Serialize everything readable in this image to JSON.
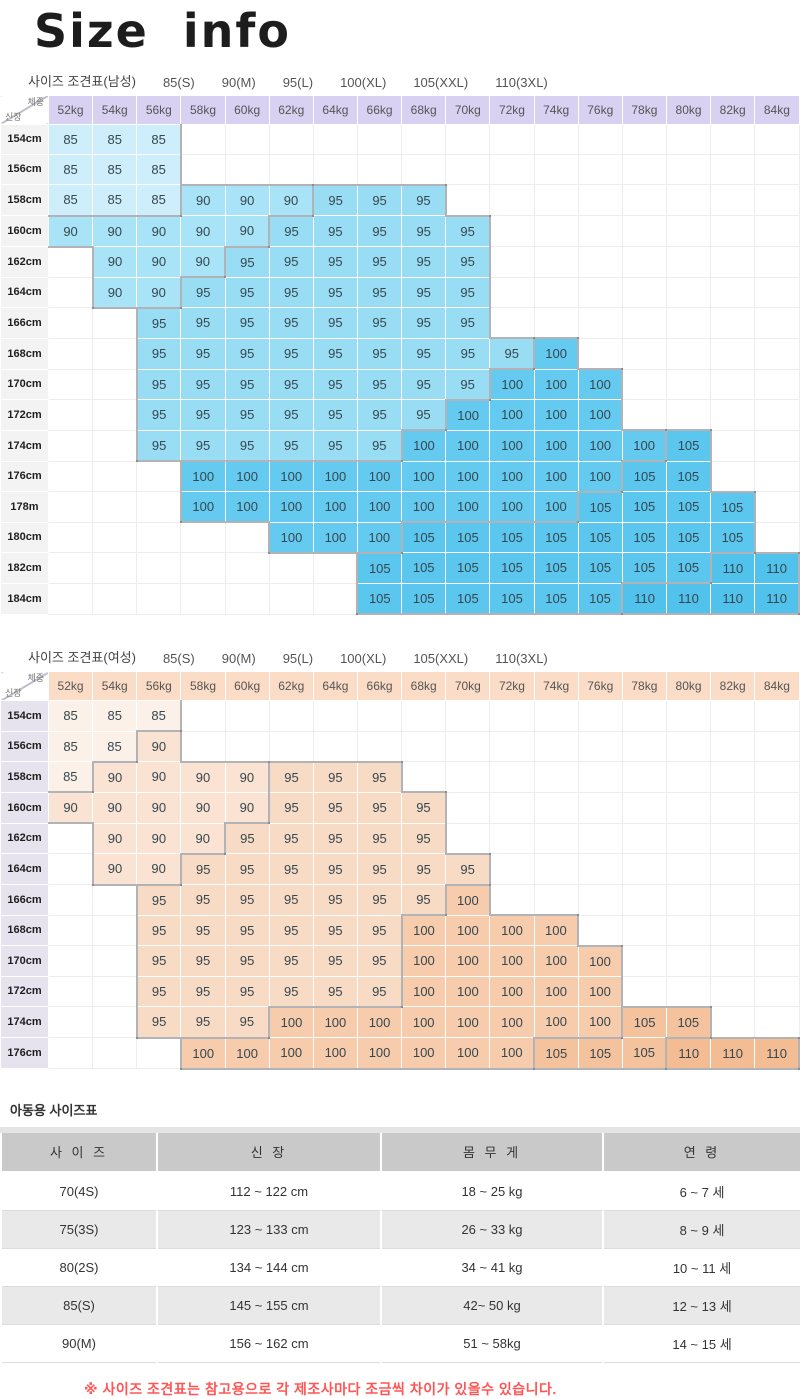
{
  "page_title": "Size info",
  "corner": {
    "top": "체중",
    "bottom": "신장"
  },
  "weights": [
    "52kg",
    "54kg",
    "56kg",
    "58kg",
    "60kg",
    "62kg",
    "64kg",
    "66kg",
    "68kg",
    "70kg",
    "72kg",
    "74kg",
    "76kg",
    "78kg",
    "80kg",
    "82kg",
    "84kg"
  ],
  "mens": {
    "name": "mens-size-table",
    "title_parts": [
      "사이즈 조견표(남성)",
      "85(S)",
      "90(M)",
      "95(L)",
      "100(XL)",
      "105(XXL)",
      "110(3XL)"
    ],
    "colors": {
      "header_bg": "#D8D1F1",
      "label_bg": "#F4F3F3",
      "cells": {
        "85": "#CDEEFA",
        "90": "#A8E3F7",
        "95": "#99DDF4",
        "100": "#65CAEF",
        "105": "#5BC6EE",
        "110": "#51C2EC"
      }
    },
    "rows": [
      {
        "label": "154cm",
        "cells": [
          "85",
          "85",
          "85",
          "",
          "",
          "",
          "",
          "",
          "",
          "",
          "",
          "",
          "",
          "",
          "",
          "",
          ""
        ]
      },
      {
        "label": "156cm",
        "cells": [
          "85",
          "85",
          "85",
          "",
          "",
          "",
          "",
          "",
          "",
          "",
          "",
          "",
          "",
          "",
          "",
          "",
          ""
        ]
      },
      {
        "label": "158cm",
        "cells": [
          "85",
          "85",
          "85",
          "90",
          "90",
          "90",
          "95",
          "95",
          "95",
          "",
          "",
          "",
          "",
          "",
          "",
          "",
          ""
        ]
      },
      {
        "label": "160cm",
        "cells": [
          "90",
          "90",
          "90",
          "90",
          "90",
          "95",
          "95",
          "95",
          "95",
          "95",
          "",
          "",
          "",
          "",
          "",
          "",
          ""
        ]
      },
      {
        "label": "162cm",
        "cells": [
          "",
          "90",
          "90",
          "90",
          "95",
          "95",
          "95",
          "95",
          "95",
          "95",
          "",
          "",
          "",
          "",
          "",
          "",
          ""
        ]
      },
      {
        "label": "164cm",
        "cells": [
          "",
          "90",
          "90",
          "95",
          "95",
          "95",
          "95",
          "95",
          "95",
          "95",
          "",
          "",
          "",
          "",
          "",
          "",
          ""
        ]
      },
      {
        "label": "166cm",
        "cells": [
          "",
          "",
          "95",
          "95",
          "95",
          "95",
          "95",
          "95",
          "95",
          "95",
          "",
          "",
          "",
          "",
          "",
          "",
          ""
        ]
      },
      {
        "label": "168cm",
        "cells": [
          "",
          "",
          "95",
          "95",
          "95",
          "95",
          "95",
          "95",
          "95",
          "95",
          "95",
          "100",
          "",
          "",
          "",
          "",
          ""
        ]
      },
      {
        "label": "170cm",
        "cells": [
          "",
          "",
          "95",
          "95",
          "95",
          "95",
          "95",
          "95",
          "95",
          "95",
          "100",
          "100",
          "100",
          "",
          "",
          "",
          ""
        ]
      },
      {
        "label": "172cm",
        "cells": [
          "",
          "",
          "95",
          "95",
          "95",
          "95",
          "95",
          "95",
          "95",
          "100",
          "100",
          "100",
          "100",
          "",
          "",
          "",
          ""
        ]
      },
      {
        "label": "174cm",
        "cells": [
          "",
          "",
          "95",
          "95",
          "95",
          "95",
          "95",
          "95",
          "100",
          "100",
          "100",
          "100",
          "100",
          "100",
          "105",
          "",
          ""
        ]
      },
      {
        "label": "176cm",
        "cells": [
          "",
          "",
          "",
          "100",
          "100",
          "100",
          "100",
          "100",
          "100",
          "100",
          "100",
          "100",
          "100",
          "105",
          "105",
          "",
          ""
        ]
      },
      {
        "label": "178m",
        "cells": [
          "",
          "",
          "",
          "100",
          "100",
          "100",
          "100",
          "100",
          "100",
          "100",
          "100",
          "100",
          "105",
          "105",
          "105",
          "105",
          ""
        ]
      },
      {
        "label": "180cm",
        "cells": [
          "",
          "",
          "",
          "",
          "",
          "100",
          "100",
          "100",
          "105",
          "105",
          "105",
          "105",
          "105",
          "105",
          "105",
          "105",
          ""
        ]
      },
      {
        "label": "182cm",
        "cells": [
          "",
          "",
          "",
          "",
          "",
          "",
          "",
          "105",
          "105",
          "105",
          "105",
          "105",
          "105",
          "105",
          "105",
          "110",
          "110"
        ]
      },
      {
        "label": "184cm",
        "cells": [
          "",
          "",
          "",
          "",
          "",
          "",
          "",
          "105",
          "105",
          "105",
          "105",
          "105",
          "105",
          "110",
          "110",
          "110",
          "110"
        ]
      }
    ]
  },
  "womens": {
    "name": "womens-size-table",
    "title_parts": [
      "사이즈 조견표(여성)",
      "85(S)",
      "90(M)",
      "95(L)",
      "100(XL)",
      "105(XXL)",
      "110(3XL)"
    ],
    "colors": {
      "header_bg": "#FBDCC6",
      "label_bg": "#E7E3EE",
      "cells": {
        "85": "#FCF1E8",
        "90": "#FAE3D2",
        "95": "#F8DBC5",
        "100": "#F6CCAC",
        "105": "#F4C29C",
        "110": "#F3BC93"
      }
    },
    "rows": [
      {
        "label": "154cm",
        "cells": [
          "85",
          "85",
          "85",
          "",
          "",
          "",
          "",
          "",
          "",
          "",
          "",
          "",
          "",
          "",
          "",
          "",
          ""
        ]
      },
      {
        "label": "156cm",
        "cells": [
          "85",
          "85",
          "90",
          "",
          "",
          "",
          "",
          "",
          "",
          "",
          "",
          "",
          "",
          "",
          "",
          "",
          ""
        ]
      },
      {
        "label": "158cm",
        "cells": [
          "85",
          "90",
          "90",
          "90",
          "90",
          "95",
          "95",
          "95",
          "",
          "",
          "",
          "",
          "",
          "",
          "",
          "",
          ""
        ]
      },
      {
        "label": "160cm",
        "cells": [
          "90",
          "90",
          "90",
          "90",
          "90",
          "95",
          "95",
          "95",
          "95",
          "",
          "",
          "",
          "",
          "",
          "",
          "",
          ""
        ]
      },
      {
        "label": "162cm",
        "cells": [
          "",
          "90",
          "90",
          "90",
          "95",
          "95",
          "95",
          "95",
          "95",
          "",
          "",
          "",
          "",
          "",
          "",
          "",
          ""
        ]
      },
      {
        "label": "164cm",
        "cells": [
          "",
          "90",
          "90",
          "95",
          "95",
          "95",
          "95",
          "95",
          "95",
          "95",
          "",
          "",
          "",
          "",
          "",
          "",
          ""
        ]
      },
      {
        "label": "166cm",
        "cells": [
          "",
          "",
          "95",
          "95",
          "95",
          "95",
          "95",
          "95",
          "95",
          "100",
          "",
          "",
          "",
          "",
          "",
          "",
          ""
        ]
      },
      {
        "label": "168cm",
        "cells": [
          "",
          "",
          "95",
          "95",
          "95",
          "95",
          "95",
          "95",
          "100",
          "100",
          "100",
          "100",
          "",
          "",
          "",
          "",
          ""
        ]
      },
      {
        "label": "170cm",
        "cells": [
          "",
          "",
          "95",
          "95",
          "95",
          "95",
          "95",
          "95",
          "100",
          "100",
          "100",
          "100",
          "100",
          "",
          "",
          "",
          ""
        ]
      },
      {
        "label": "172cm",
        "cells": [
          "",
          "",
          "95",
          "95",
          "95",
          "95",
          "95",
          "95",
          "100",
          "100",
          "100",
          "100",
          "100",
          "",
          "",
          "",
          ""
        ]
      },
      {
        "label": "174cm",
        "cells": [
          "",
          "",
          "95",
          "95",
          "95",
          "100",
          "100",
          "100",
          "100",
          "100",
          "100",
          "100",
          "100",
          "105",
          "105",
          "",
          ""
        ]
      },
      {
        "label": "176cm",
        "cells": [
          "",
          "",
          "",
          "100",
          "100",
          "100",
          "100",
          "100",
          "100",
          "100",
          "100",
          "105",
          "105",
          "105",
          "110",
          "110",
          "110"
        ]
      }
    ]
  },
  "kids": {
    "title": "아동용 사이즈표",
    "headers": [
      "사 이 즈",
      "신    장",
      "몸 무 게",
      "연    령"
    ],
    "colors": {
      "header_bg": "#C9C9C9",
      "row_bg": "#FFFFFF",
      "row_alt_bg": "#E9E9E9"
    },
    "rows": [
      [
        "70(4S)",
        "112 ~ 122 cm",
        "18 ~ 25 kg",
        "6 ~ 7 세"
      ],
      [
        "75(3S)",
        "123 ~ 133 cm",
        "26 ~ 33 kg",
        "8 ~ 9 세"
      ],
      [
        "80(2S)",
        "134 ~ 144 cm",
        "34 ~ 41 kg",
        "10 ~ 11 세"
      ],
      [
        "85(S)",
        "145 ~ 155 cm",
        "42~ 50 kg",
        "12 ~ 13 세"
      ],
      [
        "90(M)",
        "156 ~ 162 cm",
        "51 ~ 58kg",
        "14 ~ 15 세"
      ]
    ]
  },
  "footnote": {
    "text": "※ 사이즈 조견표는 참고용으로 각 제조사마다 조금씩 차이가 있을수 있습니다.",
    "color": "#FF5555"
  },
  "edge_shadow_color": "rgba(100,104,110,0.5)"
}
